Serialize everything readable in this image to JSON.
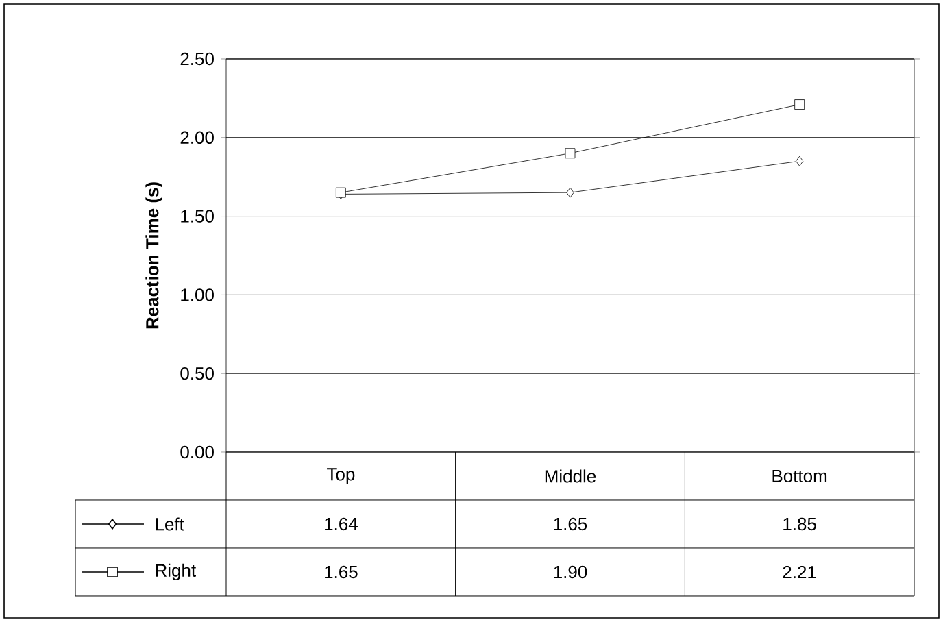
{
  "chart_data": {
    "type": "line",
    "ylabel": "Reaction Time (s)",
    "categories": [
      "Top",
      "Middle",
      "Bottom"
    ],
    "series": [
      {
        "name": "Left",
        "color": "#000000",
        "marker": "diamond",
        "values": [
          1.64,
          1.65,
          1.85
        ],
        "value_labels": [
          "1.64",
          "1.65",
          "1.85"
        ]
      },
      {
        "name": "Right",
        "color": "#000000",
        "marker": "square",
        "values": [
          1.65,
          1.9,
          2.21
        ],
        "value_labels": [
          "1.65",
          "1.90",
          "2.21"
        ]
      }
    ],
    "ylim": [
      0,
      2.5
    ],
    "yticks": [
      {
        "value": 0,
        "label": "0.00"
      },
      {
        "value": 0.5,
        "label": "0.50"
      },
      {
        "value": 1,
        "label": "1.00"
      },
      {
        "value": 1.5,
        "label": "1.50"
      },
      {
        "value": 2,
        "label": "2.00"
      },
      {
        "value": 2.5,
        "label": "2.50"
      }
    ],
    "grid": "y",
    "legend": "bottom",
    "line_style": "solid"
  }
}
